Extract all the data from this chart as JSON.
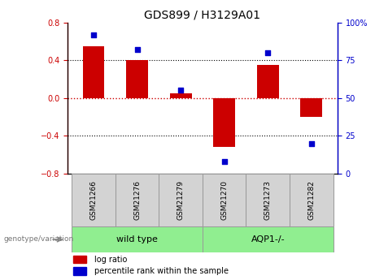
{
  "title": "GDS899 / H3129A01",
  "samples": [
    "GSM21266",
    "GSM21276",
    "GSM21279",
    "GSM21270",
    "GSM21273",
    "GSM21282"
  ],
  "log_ratio": [
    0.55,
    0.4,
    0.05,
    -0.52,
    0.35,
    -0.2
  ],
  "percentile_rank": [
    92,
    82,
    55,
    8,
    80,
    20
  ],
  "left_ylim": [
    -0.8,
    0.8
  ],
  "right_ylim": [
    0,
    100
  ],
  "left_yticks": [
    -0.8,
    -0.4,
    0,
    0.4,
    0.8
  ],
  "right_yticks": [
    0,
    25,
    50,
    75,
    100
  ],
  "bar_color": "#CC0000",
  "dot_color": "#0000CC",
  "background_color": "#ffffff",
  "bar_width": 0.5,
  "group_data": [
    {
      "label": "wild type",
      "start": 0,
      "end": 3
    },
    {
      "label": "AQP1-/-",
      "start": 3,
      "end": 6
    }
  ],
  "group_color": "#90EE90",
  "sample_box_color": "#d3d3d3",
  "legend_items": [
    "log ratio",
    "percentile rank within the sample"
  ]
}
